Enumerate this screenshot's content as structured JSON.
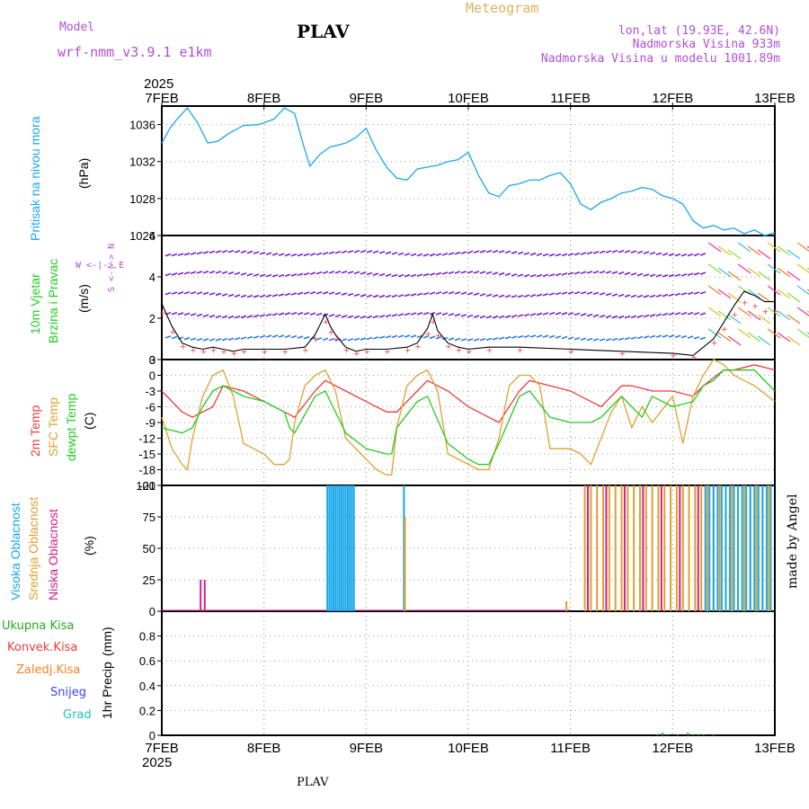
{
  "header": {
    "model_label": "Model",
    "model_name": "wrf-nmm_v3.9.1 e1km",
    "title": "PLAV",
    "meteogram_label": "Meteogram",
    "location": "lon,lat (19.93E, 42.6N)",
    "elevation": "Nadmorska Visina 933m",
    "model_elevation": "Nadmorska Visina u modelu 1001.89m",
    "year_top": "2025",
    "year_bottom": "2025",
    "footer_station": "PLAV",
    "credit": "made by Angel"
  },
  "colors": {
    "pressure": "#1aa7e8",
    "wind_mean": "#000000",
    "wind_gust": "#f03a3a",
    "temp_2m": "#f03a3a",
    "temp_sfc": "#e0a030",
    "temp_dew": "#22cc22",
    "cloud_high": "#1aa7e8",
    "cloud_mid": "#e0a030",
    "cloud_low": "#d0208a",
    "precip_total": "#22aa22",
    "precip_conv": "#f03a3a",
    "precip_frz": "#ff8020",
    "precip_snow": "#4040ff",
    "precip_grad": "#20c0c0",
    "model_text": "#b050d0"
  },
  "x_axis": {
    "dates": [
      "7FEB",
      "8FEB",
      "9FEB",
      "10FEB",
      "11FEB",
      "12FEB",
      "13FEB"
    ]
  },
  "panels": {
    "pressure": {
      "label": "Pritisak na nivou mora",
      "unit": "(hPa)",
      "ticks": [
        "1036",
        "1032",
        "1028",
        "1024"
      ]
    },
    "wind": {
      "label1": "10m Vjetar",
      "label2": "Brzina i Pravac",
      "unit": "(m/s)",
      "compass": "W <-|-> E",
      "compass_vert": "S <-|-> N",
      "ticks": [
        "6",
        "4",
        "2",
        "0"
      ]
    },
    "temp": {
      "label1": "2m Temp",
      "label2": "SFC Temp",
      "label3": "dewpt Temp",
      "unit": "(C)",
      "ticks": [
        "3",
        "0",
        "-3",
        "-6",
        "-9",
        "-12",
        "-15",
        "-18",
        "-21"
      ]
    },
    "cloud": {
      "label1": "Visoka Oblacnost",
      "label2": "Srednja Oblacnost",
      "label3": "Niska Oblacnost",
      "unit": "(%)",
      "ticks": [
        "100",
        "75",
        "50",
        "25",
        "0"
      ]
    },
    "precip": {
      "legend": [
        "Ukupna Kisa",
        "Konvek.Kisa",
        "Zaledj.Kisa",
        "Snijeg",
        "Grad"
      ],
      "label": "1hr Precip",
      "unit": "(mm)",
      "ticks": [
        "0.8",
        "0.6",
        "0.4",
        "0.2",
        "0"
      ]
    }
  },
  "chart_data": [
    {
      "type": "line",
      "name": "pressure",
      "ylim": [
        1024,
        1038
      ],
      "x_days": [
        0,
        0.08,
        0.15,
        0.25,
        0.35,
        0.45,
        0.55,
        0.65,
        0.8,
        0.95,
        1.1,
        1.2,
        1.3,
        1.38,
        1.45,
        1.55,
        1.65,
        1.7,
        1.8,
        1.9,
        2.0,
        2.1,
        2.2,
        2.3,
        2.4,
        2.5,
        2.6,
        2.7,
        2.8,
        2.9,
        3.0,
        3.1,
        3.2,
        3.3,
        3.4,
        3.5,
        3.6,
        3.7,
        3.8,
        3.9,
        4.0,
        4.1,
        4.2,
        4.3,
        4.4,
        4.5,
        4.6,
        4.7,
        4.8,
        4.9,
        5.0,
        5.1,
        5.2,
        5.3,
        5.4,
        5.5,
        5.6,
        5.7,
        5.8,
        5.9,
        6.0
      ],
      "values": [
        1034,
        1035.6,
        1036.6,
        1037.8,
        1036.2,
        1034,
        1034.2,
        1035,
        1035.9,
        1036,
        1036.6,
        1037.8,
        1037.2,
        1034,
        1031.5,
        1032.8,
        1033.6,
        1033.7,
        1034,
        1034.6,
        1035.6,
        1033.2,
        1031.4,
        1030.2,
        1030,
        1031.2,
        1031.4,
        1031.6,
        1032,
        1032.2,
        1033,
        1030.5,
        1028.6,
        1028.2,
        1029.4,
        1029.6,
        1030,
        1030,
        1030.5,
        1030.8,
        1029.6,
        1027.4,
        1026.8,
        1027.6,
        1028,
        1028.6,
        1028.8,
        1029.2,
        1029,
        1028.3,
        1028,
        1027.4,
        1025.6,
        1024.8,
        1025.1,
        1024.6,
        1024.8,
        1024.2,
        1024.6,
        1024,
        1024.3
      ]
    },
    {
      "type": "line",
      "name": "wind",
      "ylim": [
        0,
        6
      ],
      "x_days": [
        0,
        0.1,
        0.2,
        0.3,
        0.4,
        0.5,
        0.6,
        0.7,
        0.8,
        1.0,
        1.2,
        1.4,
        1.5,
        1.6,
        1.65,
        1.7,
        1.8,
        1.9,
        2.0,
        2.2,
        2.4,
        2.5,
        2.6,
        2.65,
        2.7,
        2.8,
        2.9,
        3.0,
        3.2,
        3.5,
        4.0,
        4.5,
        5.0,
        5.2,
        5.4,
        5.5,
        5.6,
        5.7,
        5.8,
        5.9,
        6.0
      ],
      "values": [
        2.7,
        1.6,
        0.8,
        0.6,
        0.5,
        0.6,
        0.5,
        0.4,
        0.5,
        0.5,
        0.5,
        0.6,
        1.2,
        2.2,
        1.6,
        1.2,
        0.6,
        0.4,
        0.5,
        0.5,
        0.6,
        0.8,
        1.5,
        2.2,
        1.4,
        0.8,
        0.6,
        0.5,
        0.6,
        0.6,
        0.5,
        0.4,
        0.3,
        0.2,
        1.0,
        1.8,
        2.6,
        3.3,
        3.1,
        2.8,
        2.8
      ]
    },
    {
      "type": "line",
      "name": "temperature",
      "ylim": [
        -21,
        3
      ],
      "series": [
        {
          "name": "2m Temp",
          "x_days": [
            0,
            0.2,
            0.3,
            0.5,
            0.6,
            0.8,
            1.0,
            1.2,
            1.3,
            1.5,
            1.6,
            1.8,
            2.0,
            2.2,
            2.3,
            2.5,
            2.6,
            2.8,
            3.0,
            3.2,
            3.3,
            3.5,
            3.6,
            3.8,
            4.0,
            4.2,
            4.3,
            4.5,
            4.6,
            4.8,
            5.0,
            5.2,
            5.3,
            5.5,
            5.6,
            5.8,
            6.0
          ],
          "values": [
            -3,
            -7,
            -8,
            -6,
            -2,
            -3,
            -5,
            -7,
            -8,
            -3,
            -1,
            -3,
            -5,
            -7,
            -7,
            -3,
            -1,
            -3,
            -6,
            -8,
            -9,
            -3,
            -1,
            -2,
            -3,
            -5,
            -6,
            -2,
            -2,
            -3,
            -3,
            -4,
            -2,
            1,
            1,
            2,
            1
          ]
        },
        {
          "name": "SFC Temp",
          "x_days": [
            0,
            0.1,
            0.2,
            0.25,
            0.3,
            0.4,
            0.5,
            0.6,
            0.7,
            0.8,
            1.0,
            1.1,
            1.2,
            1.25,
            1.3,
            1.4,
            1.5,
            1.6,
            1.7,
            1.8,
            2.0,
            2.1,
            2.2,
            2.25,
            2.3,
            2.4,
            2.5,
            2.6,
            2.7,
            2.8,
            3.0,
            3.1,
            3.2,
            3.3,
            3.4,
            3.5,
            3.6,
            3.7,
            3.8,
            4.0,
            4.1,
            4.2,
            4.4,
            4.5,
            4.6,
            4.7,
            4.8,
            5.0,
            5.1,
            5.2,
            5.3,
            5.4,
            5.5,
            5.6,
            5.8,
            6.0
          ],
          "values": [
            -8,
            -14,
            -17,
            -18,
            -12,
            -4,
            0,
            1,
            -4,
            -13,
            -15,
            -17,
            -17,
            -16,
            -9,
            -2,
            0,
            1,
            -3,
            -12,
            -16,
            -18,
            -19,
            -19,
            -10,
            -2,
            0,
            1,
            -3,
            -15,
            -17,
            -18,
            -18,
            -12,
            -2,
            0,
            0,
            -2,
            -14,
            -14,
            -15,
            -17,
            -7,
            -4,
            -10,
            -6,
            -9,
            -4,
            -13,
            -4,
            0,
            3,
            2,
            0,
            -2,
            -5
          ]
        },
        {
          "name": "dewpt Temp",
          "x_days": [
            0,
            0.2,
            0.3,
            0.4,
            0.5,
            0.6,
            0.8,
            1.0,
            1.2,
            1.25,
            1.3,
            1.5,
            1.6,
            1.8,
            2.0,
            2.2,
            2.25,
            2.3,
            2.5,
            2.6,
            2.8,
            3.0,
            3.1,
            3.2,
            3.3,
            3.5,
            3.6,
            3.8,
            4.0,
            4.2,
            4.3,
            4.5,
            4.7,
            4.8,
            5.0,
            5.2,
            5.3,
            5.4,
            5.5,
            5.6,
            5.8,
            6.0
          ],
          "values": [
            -10,
            -11,
            -10,
            -6,
            -3,
            -2,
            -4,
            -5,
            -7,
            -10,
            -11,
            -4,
            -3,
            -11,
            -14,
            -15,
            -15,
            -10,
            -5,
            -4,
            -13,
            -16,
            -17,
            -17,
            -13,
            -4,
            -3,
            -8,
            -9,
            -9,
            -8,
            -4,
            -8,
            -4,
            -6,
            -5,
            -2,
            -1,
            1,
            1,
            1,
            -3
          ]
        }
      ]
    },
    {
      "type": "bar",
      "name": "cloud",
      "ylim": [
        0,
        100
      ],
      "series": [
        {
          "name": "Visoka Oblacnost",
          "note": "high cloud 100% around 8FEB 14h-21h and 9FEB 08h, and after 12FEB 12h"
        },
        {
          "name": "Srednja Oblacnost",
          "note": "mid cloud 100% bars through 11FEB 04h-13FEB"
        },
        {
          "name": "Niska Oblacnost",
          "note": "low cloud 25% near 7FEB 10h, 100% bars 11FEB-13FEB"
        }
      ],
      "bars": [
        {
          "series": 2,
          "x_days": [
            0.38,
            0.42
          ],
          "value": 25
        },
        {
          "series": 0,
          "x_days": [
            1.62,
            1.64,
            1.66,
            1.68,
            1.7,
            1.72,
            1.74,
            1.76,
            1.78,
            1.8,
            1.82,
            1.84,
            1.86,
            1.88
          ],
          "value": 100
        },
        {
          "series": 0,
          "x_days": [
            2.37
          ],
          "value": 100
        },
        {
          "series": 1,
          "x_days": [
            2.38
          ],
          "value": 75
        },
        {
          "series": 1,
          "x_days": [
            3.96
          ],
          "value": 8
        },
        {
          "series": 1,
          "x_days": [
            4.14,
            4.2,
            4.26,
            4.32,
            4.38,
            4.44,
            4.5,
            4.56,
            4.62,
            4.68,
            4.74,
            4.8,
            4.86,
            4.92,
            4.98,
            5.04,
            5.1,
            5.16,
            5.22,
            5.28,
            5.34,
            5.4,
            5.46,
            5.52,
            5.58,
            5.64,
            5.7,
            5.76,
            5.82,
            5.88,
            5.94
          ],
          "value": 100
        },
        {
          "series": 2,
          "x_days": [
            4.17,
            4.35,
            4.53,
            4.71,
            4.89,
            5.07,
            5.25
          ],
          "value": 100
        },
        {
          "series": 0,
          "x_days": [
            5.32,
            5.36,
            5.4,
            5.44,
            5.48,
            5.52,
            5.56,
            5.6,
            5.64,
            5.68,
            5.72,
            5.76,
            5.8,
            5.84,
            5.88,
            5.92,
            5.96
          ],
          "value": 100
        }
      ]
    },
    {
      "type": "bar",
      "name": "precip",
      "ylim": [
        0,
        1
      ],
      "series": [
        {
          "name": "Ukupna Kisa",
          "x_days": [
            4.85,
            4.9,
            4.95,
            5.05,
            5.15,
            5.2,
            5.25,
            5.3,
            5.4
          ],
          "values": [
            0.01,
            0.02,
            0.01,
            0.01,
            0.02,
            0.01,
            0.01,
            0.01,
            0.01
          ]
        }
      ]
    }
  ]
}
